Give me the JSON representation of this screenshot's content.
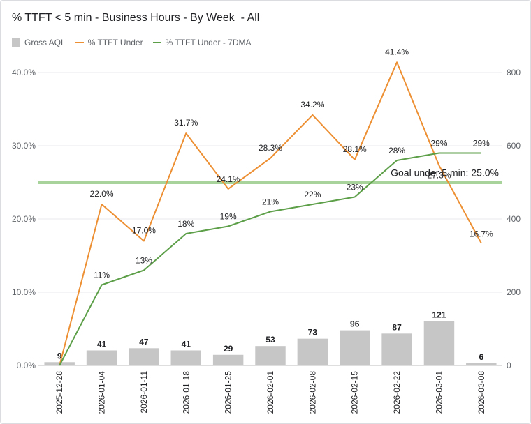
{
  "title": "% TTFT < 5 min - Business Hours - By Week  - All",
  "legend": {
    "bar": "Gross AQL",
    "line1": "% TTFT Under",
    "line2": "% TTFT Under - 7DMA"
  },
  "colors": {
    "bar": "#c6c6c6",
    "line1": "#ed8f33",
    "line2": "#5c9f48",
    "goal": "#a8d39a"
  },
  "chart_data": {
    "type": "bar+line",
    "categories": [
      "2025-12-28",
      "2026-01-04",
      "2026-01-11",
      "2026-01-18",
      "2026-01-25",
      "2026-02-01",
      "2026-02-08",
      "2026-02-15",
      "2026-02-22",
      "2026-03-01",
      "2026-03-08"
    ],
    "bar_series": {
      "name": "Gross AQL",
      "values": [
        9,
        41,
        47,
        41,
        29,
        53,
        73,
        96,
        87,
        121,
        6
      ],
      "labels": [
        "9",
        "41",
        "47",
        "41",
        "29",
        "53",
        "73",
        "96",
        "87",
        "121",
        "6"
      ]
    },
    "line_series": [
      {
        "name": "% TTFT Under",
        "values": [
          0.0,
          22.0,
          17.0,
          31.7,
          24.1,
          28.3,
          34.2,
          28.1,
          41.4,
          27.3,
          16.7
        ],
        "labels": [
          "",
          "22.0%",
          "17.0%",
          "31.7%",
          "24.1%",
          "28.3%",
          "34.2%",
          "28.1%",
          "41.4%",
          "27.3%",
          "16.7%"
        ]
      },
      {
        "name": "% TTFT Under - 7DMA",
        "values": [
          0,
          11,
          13,
          18,
          19,
          21,
          22,
          23,
          28,
          29,
          29
        ],
        "labels": [
          "",
          "11%",
          "13%",
          "18%",
          "19%",
          "21%",
          "22%",
          "23%",
          "28%",
          "29%",
          "29%"
        ]
      }
    ],
    "goal": {
      "value": 25.0,
      "label": "Goal under 5 min: 25.0%"
    },
    "left_axis": {
      "range": [
        0,
        40
      ],
      "ticks": [
        "0.0%",
        "10.0%",
        "20.0%",
        "30.0%",
        "40.0%"
      ],
      "tick_values": [
        0,
        10,
        20,
        30,
        40
      ]
    },
    "right_axis": {
      "range": [
        0,
        800
      ],
      "ticks": [
        "0",
        "200",
        "400",
        "600",
        "800"
      ],
      "tick_values": [
        0,
        200,
        400,
        600,
        800
      ]
    }
  }
}
